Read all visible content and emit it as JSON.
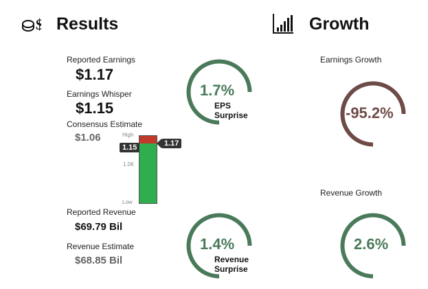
{
  "results": {
    "title": "Results",
    "icon": "money-bag-icon",
    "reported_earnings_label": "Reported Earnings",
    "reported_earnings_value": "$1.17",
    "earnings_whisper_label": "Earnings Whisper",
    "earnings_whisper_value": "$1.15",
    "consensus_label": "Consensus Estimate",
    "consensus_value": "$1.06",
    "reported_revenue_label": "Reported Revenue",
    "reported_revenue_value": "$69.79 Bil",
    "revenue_estimate_label": "Revenue Estimate",
    "revenue_estimate_value": "$68.85 Bil"
  },
  "range_bar": {
    "high_label": "High",
    "low_label": "Low",
    "consensus_tick": "1.06",
    "whisper_tag": "1.15",
    "reported_tag": "1.17",
    "colors": {
      "green": "#2fae4f",
      "red": "#c0392b"
    }
  },
  "eps_surprise": {
    "value": "1.7%",
    "line1": "EPS",
    "line2": "Surprise",
    "color": "#4a7a5a"
  },
  "revenue_surprise": {
    "value": "1.4%",
    "line1": "Revenue",
    "line2": "Surprise",
    "color": "#4a7a5a"
  },
  "growth": {
    "title": "Growth",
    "icon": "bar-chart-icon",
    "earnings_growth_label": "Earnings Growth",
    "earnings_growth_value": "-95.2%",
    "earnings_color": "#6e4b47",
    "revenue_growth_label": "Revenue Growth",
    "revenue_growth_value": "2.6%",
    "revenue_color": "#4a7a5a"
  }
}
